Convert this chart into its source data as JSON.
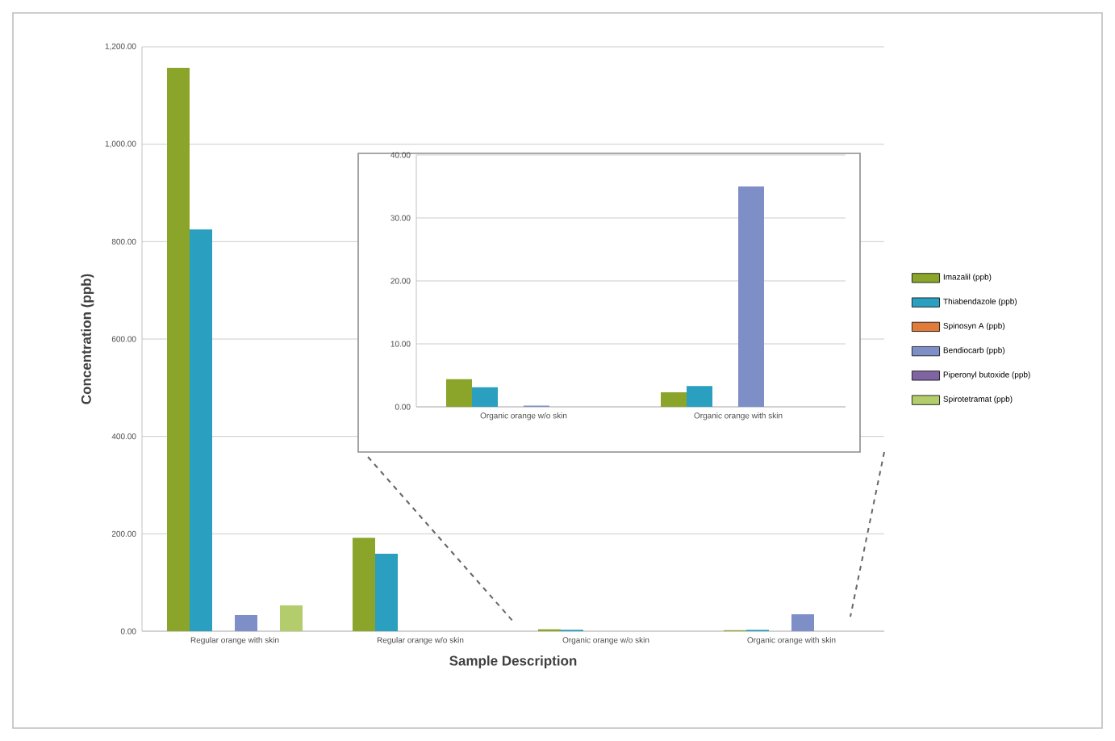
{
  "chart_data": [
    {
      "type": "bar",
      "xlabel": "Sample Description",
      "ylabel": "Concentration (ppb)",
      "categories": [
        "Regular orange with skin",
        "Regular orange w/o skin",
        "Organic orange w/o skin",
        "Organic orange with skin"
      ],
      "series": [
        {
          "name": "Imazalil (ppb)",
          "color": "#8aa52a",
          "values": [
            1157,
            192,
            4,
            2
          ]
        },
        {
          "name": "Thiabendazole (ppb)",
          "color": "#2a9fc0",
          "values": [
            825,
            159,
            3,
            3
          ]
        },
        {
          "name": "Spinosyn A (ppb)",
          "color": "#e07b39",
          "values": [
            0,
            0,
            0,
            0
          ]
        },
        {
          "name": "Bendiocarb (ppb)",
          "color": "#7e8fc8",
          "values": [
            33,
            0,
            0,
            35
          ]
        },
        {
          "name": "Piperonyl butoxide (ppb)",
          "color": "#8064a2",
          "values": [
            0,
            0,
            0,
            0
          ]
        },
        {
          "name": "Spirotetramat (ppb)",
          "color": "#b3cc6c",
          "values": [
            53,
            0,
            0,
            0
          ]
        }
      ],
      "ylim": [
        0,
        1200
      ],
      "yticks": [
        {
          "value": 0,
          "label": "0.00"
        },
        {
          "value": 200,
          "label": "200.00"
        },
        {
          "value": 400,
          "label": "400.00"
        },
        {
          "value": 600,
          "label": "600.00"
        },
        {
          "value": 800,
          "label": "800.00"
        },
        {
          "value": 1000,
          "label": "1,000.00"
        },
        {
          "value": 1200,
          "label": "1,200.00"
        }
      ],
      "grid": "y",
      "legend": "right"
    },
    {
      "type": "bar",
      "categories": [
        "Organic orange w/o skin",
        "Organic orange with skin"
      ],
      "series": [
        {
          "color": "#8aa52a",
          "values": [
            4.4,
            2.3
          ]
        },
        {
          "color": "#2a9fc0",
          "values": [
            3.1,
            3.3
          ]
        },
        {
          "color": "#e07b39",
          "values": [
            0,
            0
          ]
        },
        {
          "color": "#7e8fc8",
          "values": [
            0.2,
            35
          ]
        },
        {
          "color": "#8064a2",
          "values": [
            0,
            0
          ]
        },
        {
          "color": "#b3cc6c",
          "values": [
            0,
            0
          ]
        }
      ],
      "ylim": [
        0,
        40
      ],
      "yticks": [
        {
          "value": 0,
          "label": "0.00"
        },
        {
          "value": 10,
          "label": "10.00"
        },
        {
          "value": 20,
          "label": "20.00"
        },
        {
          "value": 30,
          "label": "30.00"
        },
        {
          "value": 40,
          "label": "40.00"
        }
      ],
      "grid": "y"
    }
  ]
}
